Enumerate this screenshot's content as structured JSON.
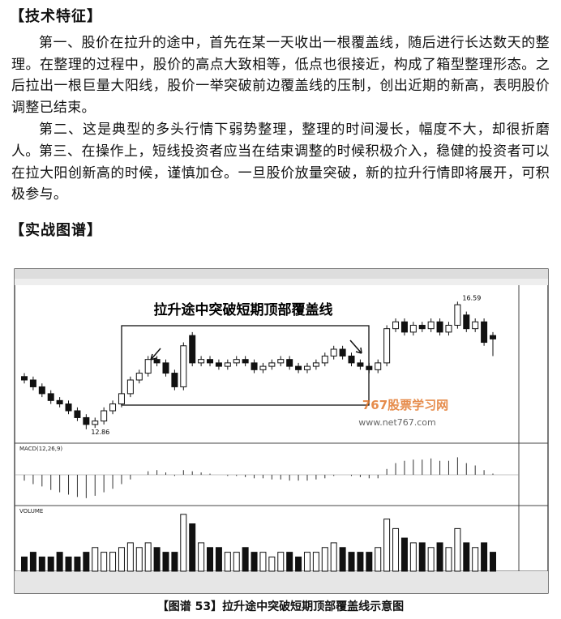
{
  "sections": [
    {
      "heading": "【技术特征】",
      "paragraphs": [
        "第一、股价在拉升的途中，首先在某一天收出一根覆盖线，随后进行长达数天的整理。在整理的过程中，股价的高点大致相等，低点也很接近，构成了箱型整理形态。之后拉出一根巨量大阳线，股价一举突破前边覆盖线的压制，创出近期的新高，表明股价调整已结束。",
        "第二、这是典型的多头行情下弱势整理，整理的时间漫长，幅度不大，却很折磨人。",
        "第三、在操作上，短线投资者应当在结束调整的时候积极介入，稳健的投资者可以在拉大阳创新高的时候，谨慎加仓。一旦股价放量突破，新的拉升行情即将展开，可积极参与。"
      ]
    },
    {
      "heading": "【实战图谱】"
    }
  ],
  "figure": {
    "annotation": "拉升途中突破短期顶部覆盖线",
    "watermark": "767股票学习网",
    "watermark_url": "www.net767.com",
    "low_label": "12.86",
    "high_label": "16.59",
    "macd_label": "MACD(12,26,9)",
    "volume_label": "VOLUME",
    "price_range": [
      12.5,
      17.0
    ],
    "candles": {
      "open": [
        14.4,
        14.3,
        14.1,
        13.9,
        13.7,
        13.6,
        13.4,
        13.2,
        13.0,
        13.1,
        13.4,
        13.6,
        13.9,
        14.3,
        14.5,
        14.9,
        14.8,
        14.5,
        14.1,
        15.6,
        14.8,
        14.9,
        14.8,
        14.7,
        14.8,
        14.9,
        14.8,
        14.6,
        14.7,
        14.8,
        14.9,
        14.7,
        14.6,
        14.7,
        14.8,
        15.0,
        15.2,
        15.0,
        14.8,
        14.7,
        14.6,
        14.8,
        15.8,
        16.0,
        15.7,
        15.9,
        15.8,
        16.0,
        15.7,
        15.9,
        16.2,
        15.8,
        16.0,
        15.6
      ],
      "close": [
        14.3,
        14.1,
        13.9,
        13.7,
        13.6,
        13.4,
        13.2,
        13.0,
        13.1,
        13.4,
        13.6,
        13.9,
        14.3,
        14.5,
        14.9,
        14.8,
        14.5,
        14.1,
        15.3,
        14.8,
        14.9,
        14.8,
        14.7,
        14.8,
        14.9,
        14.8,
        14.6,
        14.7,
        14.8,
        14.9,
        14.7,
        14.6,
        14.7,
        14.8,
        15.0,
        15.2,
        15.0,
        14.8,
        14.7,
        14.6,
        14.8,
        15.8,
        16.0,
        15.7,
        15.9,
        15.8,
        16.0,
        15.7,
        15.9,
        16.5,
        15.8,
        16.0,
        15.4,
        15.5
      ],
      "high": [
        14.5,
        14.4,
        14.2,
        14.0,
        13.8,
        13.7,
        13.5,
        13.3,
        13.2,
        13.5,
        13.7,
        14.0,
        14.4,
        14.6,
        15.0,
        15.0,
        14.9,
        14.6,
        15.4,
        15.7,
        15.0,
        15.0,
        14.9,
        14.9,
        15.0,
        15.0,
        14.9,
        14.8,
        14.9,
        15.0,
        15.0,
        14.8,
        14.8,
        14.9,
        15.1,
        15.3,
        15.3,
        15.1,
        14.9,
        14.8,
        14.9,
        15.9,
        16.1,
        16.1,
        16.0,
        16.0,
        16.1,
        16.1,
        16.0,
        16.59,
        16.3,
        16.1,
        16.1,
        15.7
      ],
      "low": [
        14.2,
        14.0,
        13.8,
        13.6,
        13.5,
        13.3,
        13.1,
        12.86,
        12.9,
        13.0,
        13.3,
        13.5,
        13.8,
        14.2,
        14.4,
        14.7,
        14.4,
        14.0,
        14.0,
        14.7,
        14.7,
        14.7,
        14.6,
        14.6,
        14.7,
        14.7,
        14.5,
        14.5,
        14.6,
        14.7,
        14.6,
        14.5,
        14.5,
        14.6,
        14.7,
        14.9,
        14.9,
        14.7,
        14.6,
        14.5,
        14.5,
        14.7,
        15.7,
        15.6,
        15.6,
        15.7,
        15.7,
        15.6,
        15.6,
        15.8,
        15.7,
        15.7,
        15.3,
        15.0
      ]
    },
    "macd_range": [
      -0.25,
      0.25
    ],
    "macd": [
      -0.05,
      -0.08,
      -0.1,
      -0.13,
      -0.15,
      -0.17,
      -0.19,
      -0.2,
      -0.18,
      -0.15,
      -0.12,
      -0.08,
      -0.04,
      0,
      0.03,
      0.04,
      0.02,
      -0.01,
      0.04,
      0.03,
      0.02,
      0.01,
      0,
      -0.01,
      -0.01,
      -0.02,
      -0.03,
      -0.03,
      -0.04,
      -0.04,
      -0.05,
      -0.05,
      -0.05,
      -0.04,
      -0.03,
      -0.01,
      0,
      -0.01,
      -0.02,
      -0.03,
      -0.03,
      0.05,
      0.1,
      0.12,
      0.13,
      0.13,
      0.14,
      0.12,
      0.12,
      0.15,
      0.1,
      0.08,
      0.04,
      0.01
    ],
    "volume_range": [
      0,
      13
    ],
    "volume": [
      3,
      4,
      3,
      3,
      4,
      3,
      3,
      4,
      5,
      4,
      4,
      5,
      6,
      5,
      6,
      5,
      4,
      4,
      12,
      10,
      6,
      5,
      5,
      4,
      4,
      5,
      4,
      4,
      3,
      4,
      4,
      3,
      4,
      4,
      5,
      6,
      5,
      4,
      4,
      4,
      5,
      11,
      9,
      7,
      6,
      6,
      5,
      6,
      5,
      9,
      6,
      5,
      6,
      4
    ]
  },
  "caption": "【图谱 53】拉升途中突破短期顶部覆盖线示意图"
}
